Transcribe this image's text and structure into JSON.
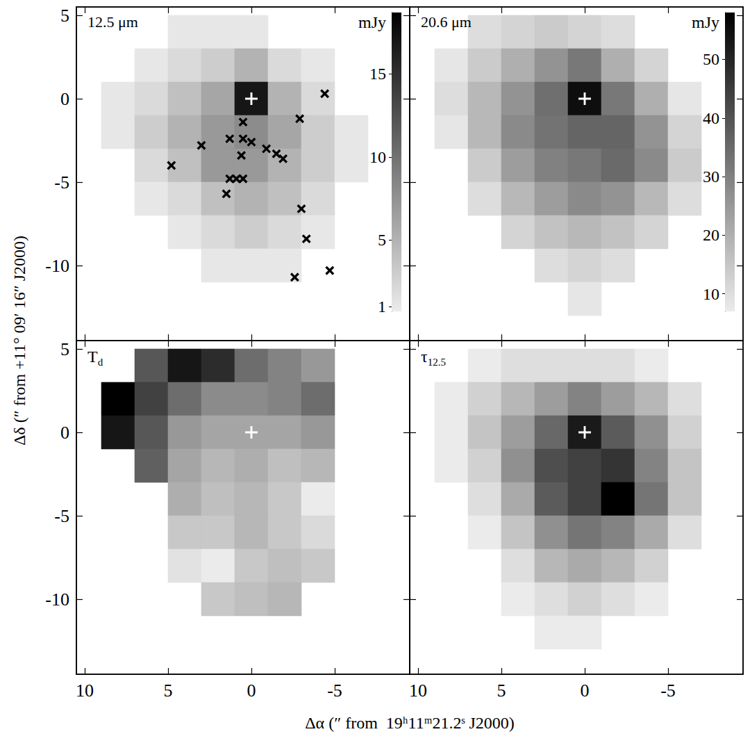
{
  "xlabel": "Δα (″ from  19ʰ11ᵐ21.2ˢ J2000)",
  "ylabel": "Δδ (″ from +11° 09′ 16″ J2000)",
  "chart_data": [
    {
      "type": "heatmap",
      "title": "12.5 μm",
      "x": [
        8,
        6,
        4,
        2,
        0,
        -2,
        -4,
        -6
      ],
      "y": [
        4,
        2,
        0,
        -2,
        -4,
        -6,
        -8,
        -10
      ],
      "cells": [
        [
          null,
          null,
          1,
          1,
          1,
          null,
          null,
          null
        ],
        [
          null,
          1,
          2,
          3,
          5,
          2,
          1,
          null
        ],
        [
          1,
          2,
          4,
          6,
          17,
          5,
          2,
          null
        ],
        [
          1,
          3,
          5,
          7,
          8,
          6,
          3,
          1
        ],
        [
          null,
          2,
          4,
          7,
          7,
          5,
          3,
          1
        ],
        [
          null,
          1,
          2,
          4,
          5,
          4,
          2,
          null
        ],
        [
          null,
          null,
          1,
          2,
          3,
          2,
          1,
          null
        ],
        [
          null,
          null,
          null,
          1,
          1,
          1,
          null,
          null
        ]
      ],
      "colorbar": {
        "label": "mJy",
        "range": [
          0.7,
          18.7
        ],
        "ticks": [
          1,
          5,
          10,
          15
        ]
      },
      "markers": [
        {
          "marker": "x",
          "color": "#000000",
          "x": [
            4.8,
            3.0,
            1.3,
            0.5,
            0.5,
            0.0,
            0.6,
            -0.9,
            -1.5,
            -1.9,
            1.3,
            0.9,
            0.5,
            1.5,
            -2.9,
            -4.4,
            -3.0,
            -3.3,
            -2.6,
            -4.7
          ],
          "y": [
            -4.0,
            -2.8,
            -2.4,
            -1.4,
            -2.4,
            -2.6,
            -3.4,
            -3.0,
            -3.3,
            -3.6,
            -4.8,
            -4.8,
            -4.8,
            -5.7,
            -1.2,
            0.3,
            -6.6,
            -8.4,
            -10.7,
            -10.3
          ]
        },
        {
          "marker": "plus",
          "color": "#ffffff",
          "x": [
            0
          ],
          "y": [
            0
          ]
        }
      ],
      "xlim": [
        10.5,
        -9.5
      ],
      "ylim": [
        -14.5,
        5.5
      ],
      "xticks": [
        10,
        5,
        0,
        -5
      ],
      "yticks": [
        5,
        0,
        -5,
        -10
      ],
      "tick_labels": "y"
    },
    {
      "type": "heatmap",
      "title": "20.6 μm",
      "x": [
        8,
        6,
        4,
        2,
        0,
        -2,
        -4,
        -6
      ],
      "y": [
        4,
        2,
        0,
        -2,
        -4,
        -6,
        -8,
        -10,
        -12
      ],
      "cells": [
        [
          null,
          10,
          12,
          14,
          12,
          10,
          null,
          null
        ],
        [
          8,
          14,
          20,
          26,
          32,
          20,
          12,
          null
        ],
        [
          10,
          18,
          26,
          34,
          55,
          32,
          20,
          8
        ],
        [
          8,
          18,
          28,
          33,
          36,
          36,
          26,
          12
        ],
        [
          null,
          14,
          24,
          30,
          32,
          35,
          28,
          14
        ],
        [
          null,
          10,
          18,
          24,
          28,
          26,
          18,
          10
        ],
        [
          null,
          null,
          12,
          16,
          18,
          16,
          12,
          null
        ],
        [
          null,
          null,
          null,
          10,
          12,
          10,
          null,
          null
        ],
        [
          null,
          null,
          null,
          null,
          8,
          null,
          null,
          null
        ]
      ],
      "colorbar": {
        "label": "mJy",
        "range": [
          7,
          58
        ],
        "ticks": [
          10,
          20,
          30,
          40,
          50
        ]
      },
      "markers": [
        {
          "marker": "plus",
          "color": "#ffffff",
          "x": [
            0
          ],
          "y": [
            0
          ]
        }
      ],
      "xlim": [
        10.5,
        -9.5
      ],
      "ylim": [
        -14.5,
        5.5
      ],
      "xticks": [
        10,
        5,
        0,
        -5
      ],
      "yticks": [
        5,
        0,
        -5,
        -10
      ],
      "tick_labels": false
    },
    {
      "type": "heatmap",
      "title": {
        "main": "T",
        "sub": "d"
      },
      "x": [
        8,
        6,
        4,
        2,
        0,
        -2,
        -4,
        -6
      ],
      "y": [
        4,
        2,
        0,
        -2,
        -4,
        -6,
        -8,
        -10
      ],
      "cells": [
        [
          null,
          130,
          145,
          140,
          125,
          120,
          115,
          null
        ],
        [
          150,
          135,
          125,
          118,
          118,
          120,
          125,
          null
        ],
        [
          145,
          130,
          115,
          112,
          112,
          112,
          115,
          null
        ],
        [
          null,
          128,
          112,
          108,
          110,
          106,
          108,
          null
        ],
        [
          null,
          null,
          110,
          106,
          108,
          104,
          96,
          null
        ],
        [
          null,
          null,
          104,
          104,
          108,
          104,
          100,
          null
        ],
        [
          null,
          null,
          98,
          96,
          104,
          106,
          104,
          null
        ],
        [
          null,
          null,
          null,
          104,
          106,
          108,
          null,
          null
        ]
      ],
      "markers": [
        {
          "marker": "plus",
          "color": "#ffffff",
          "x": [
            0
          ],
          "y": [
            0
          ]
        }
      ],
      "xlim": [
        10.5,
        -9.5
      ],
      "ylim": [
        -14.5,
        5.5
      ],
      "xticks": [
        10,
        5,
        0,
        -5
      ],
      "yticks": [
        5,
        0,
        -5,
        -10
      ]
    },
    {
      "type": "heatmap",
      "title": {
        "main": "τ",
        "sub": "12.5"
      },
      "x": [
        8,
        6,
        4,
        2,
        0,
        -2,
        -4,
        -6
      ],
      "y": [
        4,
        2,
        0,
        -2,
        -4,
        -6,
        -8,
        -10,
        -12
      ],
      "cells": [
        [
          null,
          0.1,
          0.15,
          0.15,
          0.15,
          0.15,
          0.1,
          null
        ],
        [
          0.1,
          0.2,
          0.3,
          0.4,
          0.5,
          0.4,
          0.3,
          0.15
        ],
        [
          0.1,
          0.25,
          0.4,
          0.6,
          0.9,
          0.65,
          0.45,
          0.2
        ],
        [
          0.1,
          0.2,
          0.45,
          0.7,
          0.75,
          0.8,
          0.5,
          0.25
        ],
        [
          null,
          0.15,
          0.35,
          0.65,
          0.75,
          1.0,
          0.55,
          0.25
        ],
        [
          null,
          0.1,
          0.25,
          0.45,
          0.55,
          0.5,
          0.35,
          0.15
        ],
        [
          null,
          null,
          0.15,
          0.3,
          0.35,
          0.3,
          0.2,
          null
        ],
        [
          null,
          null,
          0.1,
          0.15,
          0.2,
          0.15,
          0.1,
          null
        ],
        [
          null,
          null,
          null,
          0.1,
          0.1,
          null,
          null,
          null
        ]
      ],
      "markers": [
        {
          "marker": "plus",
          "color": "#ffffff",
          "x": [
            0
          ],
          "y": [
            0
          ]
        }
      ],
      "xlim": [
        10.5,
        -9.5
      ],
      "ylim": [
        -14.5,
        5.5
      ],
      "xticks": [
        10,
        5,
        0,
        -5
      ],
      "yticks": [
        5,
        0,
        -5,
        -10
      ],
      "tick_labels": "x"
    }
  ]
}
